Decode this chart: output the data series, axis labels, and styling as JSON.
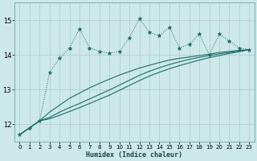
{
  "xlabel": "Humidex (Indice chaleur)",
  "background_color": "#cce8e8",
  "grid_color": "#aacccc",
  "line_color": "#1a6e68",
  "xlim": [
    -0.5,
    23.5
  ],
  "ylim": [
    11.5,
    15.5
  ],
  "yticks": [
    12,
    13,
    14,
    15
  ],
  "xticks": [
    0,
    1,
    2,
    3,
    4,
    5,
    6,
    7,
    8,
    9,
    10,
    11,
    12,
    13,
    14,
    15,
    16,
    17,
    18,
    19,
    20,
    21,
    22,
    23
  ],
  "s1_x": [
    0,
    1,
    2,
    3,
    4,
    5,
    6,
    7,
    8,
    9,
    10,
    11,
    12,
    13,
    14,
    15,
    16,
    17,
    18,
    19,
    20,
    21,
    22,
    23
  ],
  "s1_y": [
    11.7,
    11.9,
    12.1,
    13.5,
    13.9,
    14.2,
    14.75,
    14.2,
    14.1,
    14.05,
    14.1,
    14.5,
    15.05,
    14.65,
    14.55,
    14.8,
    14.2,
    14.3,
    14.6,
    14.0,
    14.6,
    14.4,
    14.2,
    14.15
  ],
  "smooth2_x": [
    0,
    1,
    2,
    3,
    4,
    5,
    6,
    7,
    8,
    9,
    10,
    11,
    12,
    13,
    14,
    15,
    16,
    17,
    18,
    19,
    20,
    21,
    22,
    23
  ],
  "smooth2_y": [
    11.7,
    11.9,
    12.1,
    12.35,
    12.55,
    12.75,
    12.9,
    13.05,
    13.18,
    13.3,
    13.42,
    13.52,
    13.62,
    13.7,
    13.78,
    13.85,
    13.9,
    13.94,
    13.98,
    14.02,
    14.07,
    14.1,
    14.13,
    14.15
  ],
  "smooth3_x": [
    0,
    1,
    2,
    3,
    4,
    5,
    6,
    7,
    8,
    9,
    10,
    11,
    12,
    13,
    14,
    15,
    16,
    17,
    18,
    19,
    20,
    21,
    22,
    23
  ],
  "smooth3_y": [
    11.7,
    11.9,
    12.1,
    12.2,
    12.35,
    12.48,
    12.6,
    12.73,
    12.86,
    12.99,
    13.13,
    13.27,
    13.41,
    13.53,
    13.63,
    13.72,
    13.8,
    13.87,
    13.93,
    13.98,
    14.03,
    14.07,
    14.11,
    14.15
  ],
  "smooth4_x": [
    0,
    1,
    2,
    3,
    4,
    5,
    6,
    7,
    8,
    9,
    10,
    11,
    12,
    13,
    14,
    15,
    16,
    17,
    18,
    19,
    20,
    21,
    22,
    23
  ],
  "smooth4_y": [
    11.7,
    11.9,
    12.1,
    12.16,
    12.26,
    12.37,
    12.48,
    12.6,
    12.72,
    12.84,
    12.98,
    13.12,
    13.26,
    13.39,
    13.5,
    13.6,
    13.69,
    13.77,
    13.85,
    13.92,
    13.98,
    14.04,
    14.09,
    14.15
  ]
}
